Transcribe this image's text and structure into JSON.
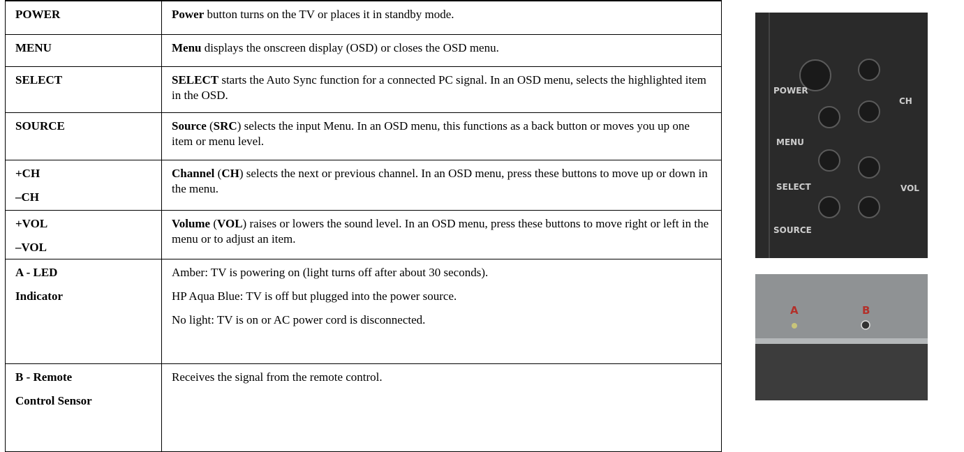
{
  "table": {
    "rows": [
      {
        "label": [
          "POWER"
        ],
        "description": [
          [
            {
              "text": "Power",
              "bold": true
            },
            " button turns on the TV or places it in standby mode."
          ]
        ]
      },
      {
        "label": [
          "MENU"
        ],
        "description": [
          [
            {
              "text": "Menu",
              "bold": true
            },
            " displays the onscreen display (OSD) or closes the OSD menu."
          ]
        ]
      },
      {
        "label": [
          "SELECT"
        ],
        "description": [
          [
            {
              "text": "SELECT",
              "bold": true
            },
            " starts the Auto Sync function for a connected PC signal. In an OSD menu, selects the highlighted item in the OSD."
          ]
        ]
      },
      {
        "label": [
          "SOURCE"
        ],
        "description": [
          [
            {
              "text": "Source",
              "bold": true
            },
            " (",
            {
              "text": "SRC",
              "bold": true
            },
            ") selects the input Menu. In an OSD menu, this functions as a back button or moves you up one item or menu level."
          ]
        ]
      },
      {
        "label": [
          "+CH",
          "–CH"
        ],
        "description": [
          [
            {
              "text": "Channel",
              "bold": true
            },
            " (",
            {
              "text": "CH",
              "bold": true
            },
            ") selects the next or previous channel. In an OSD menu, press these buttons to move up or down in the menu."
          ]
        ]
      },
      {
        "label": [
          "+VOL",
          "–VOL"
        ],
        "description": [
          [
            {
              "text": "Volume",
              "bold": true
            },
            " (",
            {
              "text": "VOL",
              "bold": true
            },
            ") raises or lowers the sound level. In an OSD menu, press these buttons to move right or left in the menu or to adjust an item."
          ]
        ]
      },
      {
        "label": [
          "A - LED",
          "Indicator"
        ],
        "description": [
          [
            "Amber: TV is powering on (light turns off after about 30 seconds)."
          ],
          [
            "HP Aqua Blue: TV is off but plugged into the power source."
          ],
          [
            "No light: TV is on or AC power cord is disconnected."
          ]
        ]
      },
      {
        "label": [
          "B - Remote",
          "Control Sensor"
        ],
        "description": [
          [
            "Receives the signal from the remote control."
          ]
        ]
      }
    ]
  },
  "images": {
    "button_panel": {
      "power": "POWER",
      "menu": "MENU",
      "select": "SELECT",
      "source": "SOURCE",
      "ch": "CH",
      "vol": "VOL"
    },
    "sensor_panel": {
      "a": "A",
      "b": "B"
    }
  }
}
